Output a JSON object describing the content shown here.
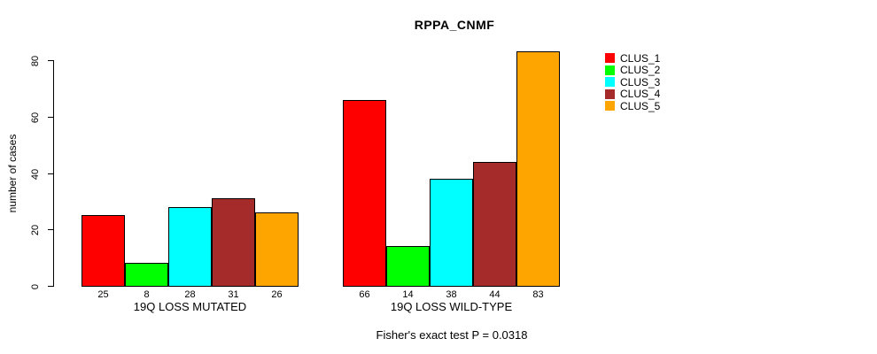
{
  "title": "RPPA_CNMF",
  "footer": "Fisher's exact test P = 0.0318",
  "y_axis": {
    "label": "number of cases",
    "ticks": [
      0,
      20,
      40,
      60,
      80
    ]
  },
  "legend": {
    "items": [
      {
        "label": "CLUS_1",
        "color": "#FF0000"
      },
      {
        "label": "CLUS_2",
        "color": "#00FF00"
      },
      {
        "label": "CLUS_3",
        "color": "#00FFFF"
      },
      {
        "label": "CLUS_4",
        "color": "#A52A2A"
      },
      {
        "label": "CLUS_5",
        "color": "#FFA500"
      }
    ]
  },
  "chart_data": {
    "type": "bar",
    "title": "RPPA_CNMF",
    "xlabel": "",
    "ylabel": "number of cases",
    "ylim": [
      0,
      80
    ],
    "yticks": [
      0,
      20,
      40,
      60,
      80
    ],
    "grid": false,
    "legend_position": "right",
    "categories": [
      "19Q LOSS MUTATED",
      "19Q LOSS WILD-TYPE"
    ],
    "series": [
      {
        "name": "CLUS_1",
        "color": "#FF0000",
        "values": [
          25,
          66
        ]
      },
      {
        "name": "CLUS_2",
        "color": "#00FF00",
        "values": [
          8,
          14
        ]
      },
      {
        "name": "CLUS_3",
        "color": "#00FFFF",
        "values": [
          28,
          38
        ]
      },
      {
        "name": "CLUS_4",
        "color": "#A52A2A",
        "values": [
          31,
          44
        ]
      },
      {
        "name": "CLUS_5",
        "color": "#FFA500",
        "values": [
          26,
          83
        ]
      }
    ],
    "bar_value_labels": [
      [
        25,
        8,
        28,
        31,
        26
      ],
      [
        66,
        14,
        38,
        44,
        83
      ]
    ],
    "annotation": "Fisher's exact test P = 0.0318"
  }
}
